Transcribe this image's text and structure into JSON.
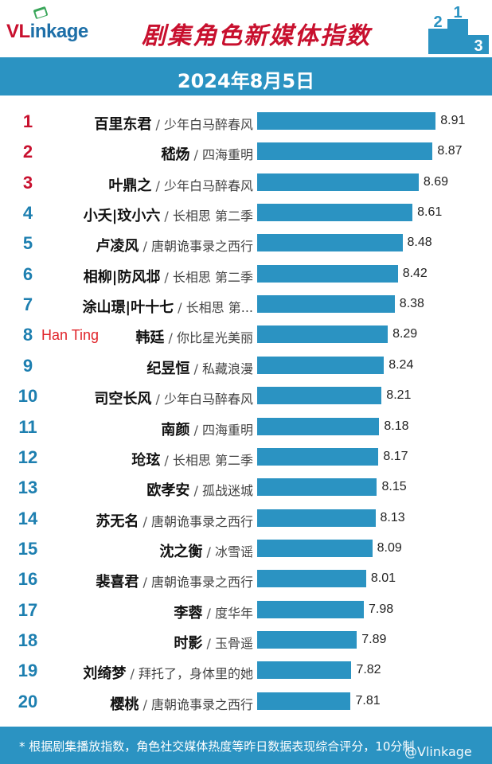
{
  "header": {
    "logo_text_v": "VL",
    "logo_text_rest": "inkage",
    "title": "剧集角色新媒体指数",
    "podium_numbers": [
      "2",
      "1",
      "3"
    ]
  },
  "date": "2024年8月5日",
  "colors": {
    "bar": "#2b93c2",
    "rank_top3": "#c8102e",
    "rank_other": "#1d7fb0",
    "title": "#c8102e"
  },
  "chart_data": {
    "type": "bar",
    "orientation": "horizontal",
    "title": "剧集角色新媒体指数",
    "xlim": [
      6.6,
      9.0
    ],
    "grid": false,
    "categories": [
      "百里东君",
      "嵇炀",
      "叶鼎之",
      "小夭|玟小六",
      "卢凌风",
      "相柳|防风邶",
      "涂山璟|叶十七",
      "韩廷",
      "纪昱恒",
      "司空长风",
      "南颜",
      "玱玹",
      "欧孝安",
      "苏无名",
      "沈之衡",
      "裴喜君",
      "李蓉",
      "时影",
      "刘绮梦",
      "樱桃"
    ],
    "rows": [
      {
        "rank": "1",
        "character": "百里东君",
        "show": "少年白马醉春风",
        "value": 8.91,
        "label": "8.91"
      },
      {
        "rank": "2",
        "character": "嵇炀",
        "show": "四海重明",
        "value": 8.87,
        "label": "8.87"
      },
      {
        "rank": "3",
        "character": "叶鼎之",
        "show": "少年白马醉春风",
        "value": 8.69,
        "label": "8.69"
      },
      {
        "rank": "4",
        "character": "小夭|玟小六",
        "show": "长相思 第二季",
        "value": 8.61,
        "label": "8.61"
      },
      {
        "rank": "5",
        "character": "卢凌风",
        "show": "唐朝诡事录之西行",
        "value": 8.48,
        "label": "8.48"
      },
      {
        "rank": "6",
        "character": "相柳|防风邶",
        "show": "长相思 第二季",
        "value": 8.42,
        "label": "8.42"
      },
      {
        "rank": "7",
        "character": "涂山璟|叶十七",
        "show": "长相思 第...",
        "value": 8.38,
        "label": "8.38"
      },
      {
        "rank": "8",
        "character": "韩廷",
        "show": "你比星光美丽",
        "value": 8.29,
        "label": "8.29"
      },
      {
        "rank": "9",
        "character": "纪昱恒",
        "show": "私藏浪漫",
        "value": 8.24,
        "label": "8.24"
      },
      {
        "rank": "10",
        "character": "司空长风",
        "show": "少年白马醉春风",
        "value": 8.21,
        "label": "8.21"
      },
      {
        "rank": "11",
        "character": "南颜",
        "show": "四海重明",
        "value": 8.18,
        "label": "8.18"
      },
      {
        "rank": "12",
        "character": "玱玹",
        "show": "长相思 第二季",
        "value": 8.17,
        "label": "8.17"
      },
      {
        "rank": "13",
        "character": "欧孝安",
        "show": "孤战迷城",
        "value": 8.15,
        "label": "8.15"
      },
      {
        "rank": "14",
        "character": "苏无名",
        "show": "唐朝诡事录之西行",
        "value": 8.13,
        "label": "8.13"
      },
      {
        "rank": "15",
        "character": "沈之衡",
        "show": "冰雪谣",
        "value": 8.09,
        "label": "8.09"
      },
      {
        "rank": "16",
        "character": "裴喜君",
        "show": "唐朝诡事录之西行",
        "value": 8.01,
        "label": "8.01"
      },
      {
        "rank": "17",
        "character": "李蓉",
        "show": "度华年",
        "value": 7.98,
        "label": "7.98"
      },
      {
        "rank": "18",
        "character": "时影",
        "show": "玉骨遥",
        "value": 7.89,
        "label": "7.89"
      },
      {
        "rank": "19",
        "character": "刘绮梦",
        "show": "拜托了，身体里的她",
        "value": 7.82,
        "label": "7.82"
      },
      {
        "rank": "20",
        "character": "樱桃",
        "show": "唐朝诡事录之西行",
        "value": 7.81,
        "label": "7.81"
      }
    ],
    "annotations": [
      {
        "text": "Han Ting",
        "row": "8",
        "color": "#e0242a"
      }
    ]
  },
  "footer": {
    "note": "* 根据剧集播放指数，角色社交媒体热度等昨日数据表现综合评分，10分制",
    "watermark": "@Vlinkage"
  }
}
